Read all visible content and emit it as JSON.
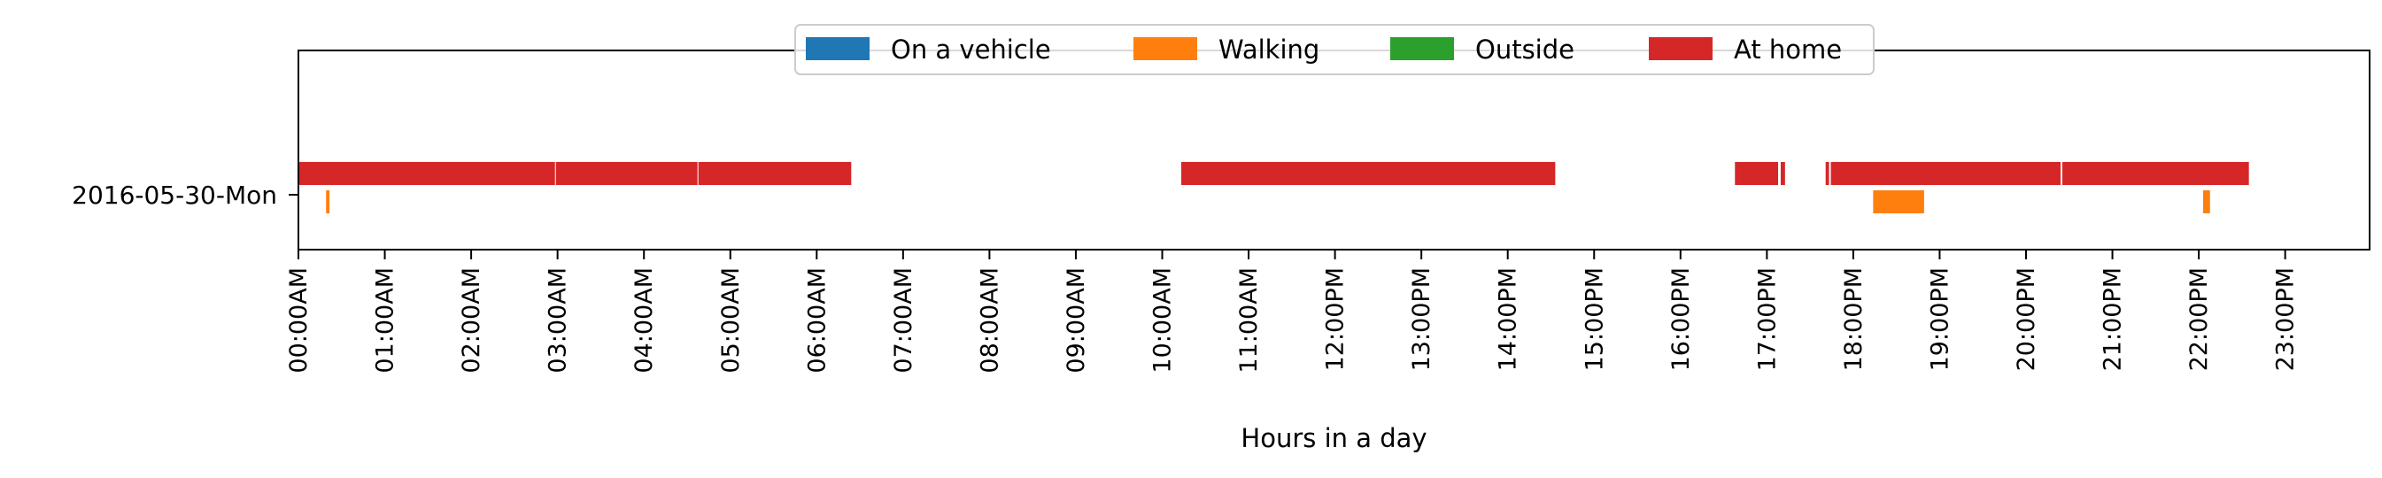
{
  "chart_data": {
    "type": "timeline",
    "title": "",
    "xlabel": "Hours in a day",
    "ylabel": "",
    "x_range_hours": [
      0,
      24
    ],
    "x_ticks": [
      "00:00AM",
      "01:00AM",
      "02:00AM",
      "03:00AM",
      "04:00AM",
      "05:00AM",
      "06:00AM",
      "07:00AM",
      "08:00AM",
      "09:00AM",
      "10:00AM",
      "11:00AM",
      "12:00PM",
      "13:00PM",
      "14:00PM",
      "15:00PM",
      "16:00PM",
      "17:00PM",
      "18:00PM",
      "19:00PM",
      "20:00PM",
      "21:00PM",
      "22:00PM",
      "23:00PM"
    ],
    "y_categories": [
      "2016-05-30-Mon"
    ],
    "legend_placement": "top-center",
    "legend": [
      {
        "name": "On a vehicle",
        "color": "#1f77b4"
      },
      {
        "name": "Walking",
        "color": "#ff7f0e"
      },
      {
        "name": "Outside",
        "color": "#2ca02c"
      },
      {
        "name": "At home",
        "color": "#d62728"
      }
    ],
    "series": [
      {
        "name": "On a vehicle",
        "lane": 0,
        "color": "#1f77b4",
        "segments": []
      },
      {
        "name": "Outside",
        "lane": 0,
        "color": "#2ca02c",
        "segments": []
      },
      {
        "name": "At home",
        "lane": 0,
        "color": "#d62728",
        "segments": [
          [
            0.0,
            2.97
          ],
          [
            2.98,
            4.62
          ],
          [
            4.63,
            6.4
          ],
          [
            10.22,
            14.55
          ],
          [
            16.63,
            17.13
          ],
          [
            17.16,
            17.21
          ],
          [
            17.68,
            17.72
          ],
          [
            17.74,
            20.4
          ],
          [
            20.42,
            22.58
          ]
        ]
      },
      {
        "name": "Walking",
        "lane": 1,
        "color": "#ff7f0e",
        "segments": [
          [
            0.32,
            0.36
          ],
          [
            18.23,
            18.82
          ],
          [
            22.05,
            22.13
          ]
        ]
      }
    ]
  }
}
